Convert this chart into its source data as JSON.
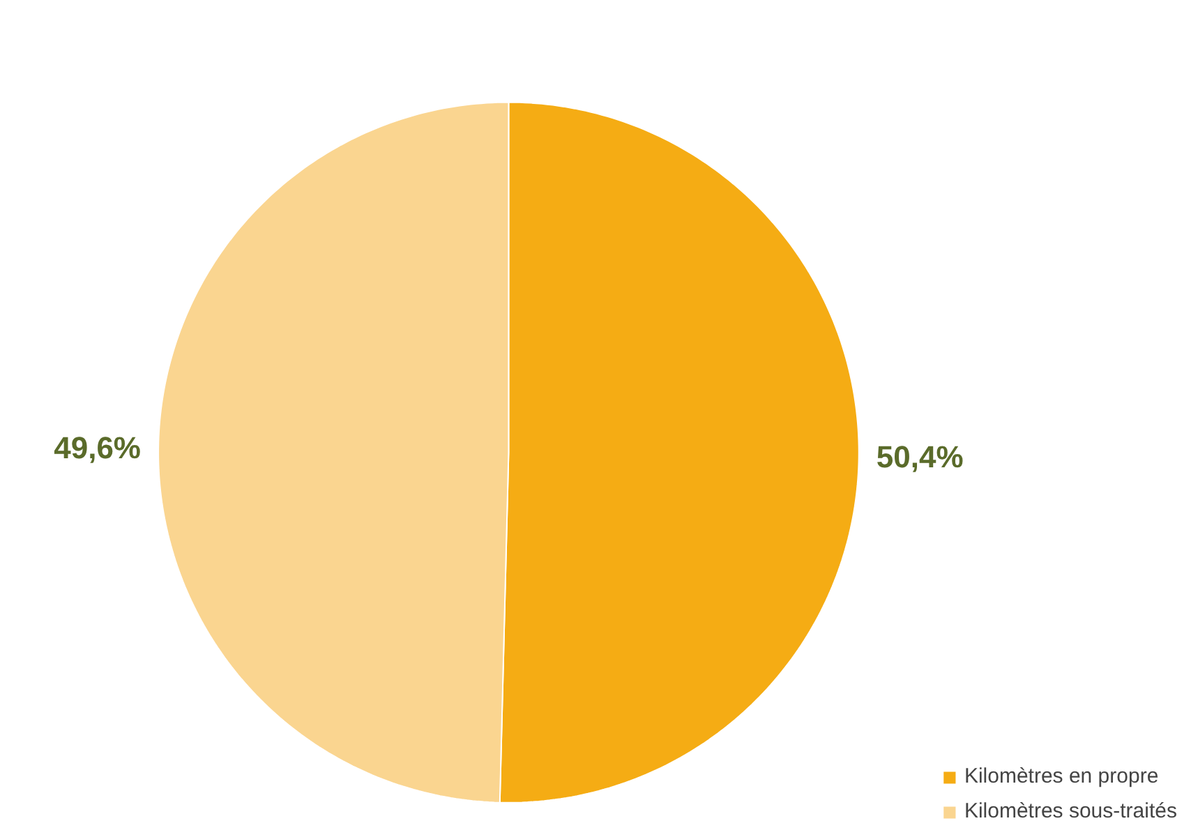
{
  "chart_data": {
    "type": "pie",
    "categories": [
      "Kilomètres en propre",
      "Kilomètres sous-traités"
    ],
    "values": [
      50.4,
      49.6
    ],
    "colors": [
      "#f5ac14",
      "#fad590"
    ],
    "value_labels": [
      "50,4%",
      "49,6%"
    ],
    "legend": "bottom right"
  }
}
